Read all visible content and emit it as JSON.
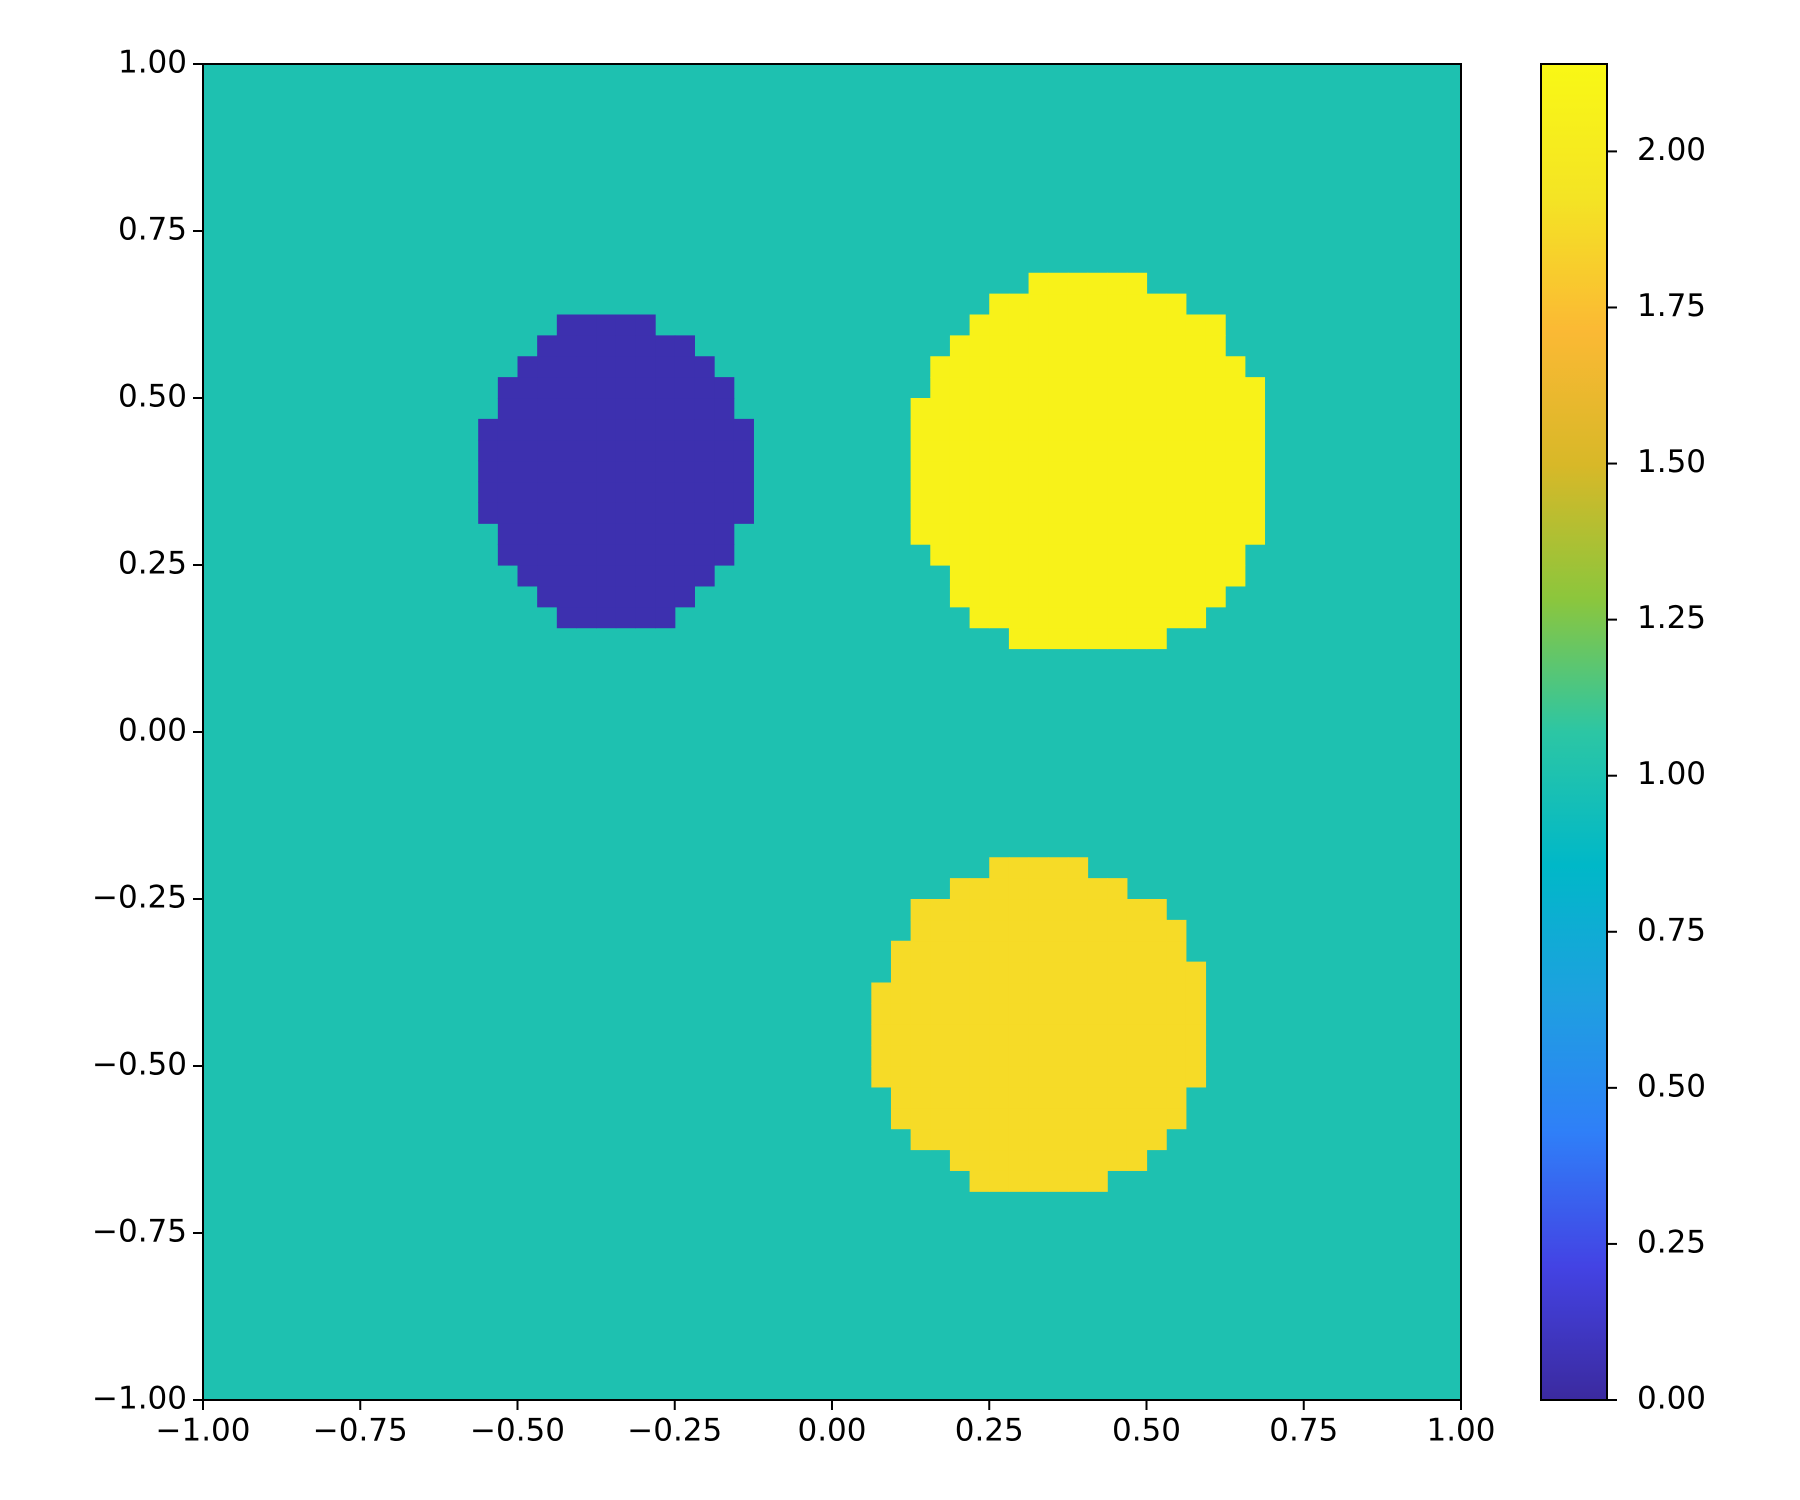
{
  "chart_data": {
    "type": "heatmap",
    "grid_size": 64,
    "background": 1.0,
    "regions": [
      {
        "x": -0.345,
        "y": 0.39,
        "rx": 0.215,
        "ry": 0.235,
        "value": 0.05
      },
      {
        "x": 0.41,
        "y": 0.4,
        "rx": 0.29,
        "ry": 0.29,
        "value": 2.08
      },
      {
        "x": 0.33,
        "y": -0.44,
        "rx": 0.265,
        "ry": 0.25,
        "value": 1.88
      }
    ],
    "xlim": [
      -1,
      1
    ],
    "ylim": [
      -1,
      1
    ],
    "xticks": [
      {
        "value": -1,
        "label": "−1.00"
      },
      {
        "value": -0.75,
        "label": "−0.75"
      },
      {
        "value": -0.5,
        "label": "−0.50"
      },
      {
        "value": -0.25,
        "label": "−0.25"
      },
      {
        "value": 0,
        "label": "0.00"
      },
      {
        "value": 0.25,
        "label": "0.25"
      },
      {
        "value": 0.5,
        "label": "0.50"
      },
      {
        "value": 0.75,
        "label": "0.75"
      },
      {
        "value": 1,
        "label": "1.00"
      }
    ],
    "yticks": [
      {
        "value": -1,
        "label": "−1.00"
      },
      {
        "value": -0.75,
        "label": "−0.75"
      },
      {
        "value": -0.5,
        "label": "−0.50"
      },
      {
        "value": -0.25,
        "label": "−0.25"
      },
      {
        "value": 0,
        "label": "0.00"
      },
      {
        "value": 0.25,
        "label": "0.25"
      },
      {
        "value": 0.5,
        "label": "0.50"
      },
      {
        "value": 0.75,
        "label": "0.75"
      },
      {
        "value": 1,
        "label": "1.00"
      }
    ],
    "clim": [
      0,
      2.14
    ],
    "cticks": [
      {
        "value": 0,
        "label": "0.00"
      },
      {
        "value": 0.25,
        "label": "0.25"
      },
      {
        "value": 0.5,
        "label": "0.50"
      },
      {
        "value": 0.75,
        "label": "0.75"
      },
      {
        "value": 1,
        "label": "1.00"
      },
      {
        "value": 1.25,
        "label": "1.25"
      },
      {
        "value": 1.5,
        "label": "1.50"
      },
      {
        "value": 1.75,
        "label": "1.75"
      },
      {
        "value": 2,
        "label": "2.00"
      }
    ],
    "colorscale": [
      "#3b2a9f",
      "#4343e4",
      "#2f7ff8",
      "#1ea0e0",
      "#00b8c8",
      "#2cc6a4",
      "#8cc63c",
      "#d8b828",
      "#fbb934",
      "#f4e424",
      "#f9f815"
    ]
  }
}
